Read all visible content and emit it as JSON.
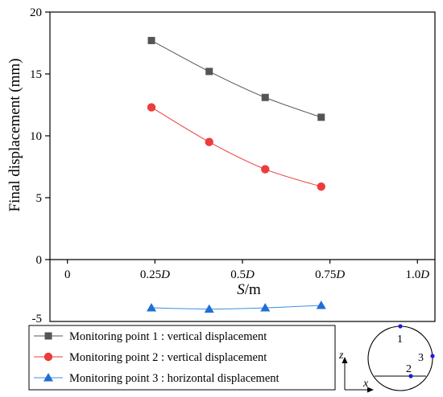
{
  "chart_data": {
    "type": "line",
    "xlabel": "S/m",
    "xlabel_parts": [
      "S",
      "/m"
    ],
    "ylabel": "Final displacement (mm)",
    "xlim": [
      -0.05,
      1.05
    ],
    "ylim": [
      -5,
      20
    ],
    "x_ticks": [
      {
        "value": 0,
        "label": "0",
        "num": "0",
        "sym": ""
      },
      {
        "value": 0.25,
        "label": "0.25D",
        "num": "0.25",
        "sym": "D"
      },
      {
        "value": 0.5,
        "label": "0.5D",
        "num": "0.5",
        "sym": "D"
      },
      {
        "value": 0.75,
        "label": "0.75D",
        "num": "0.75",
        "sym": "D"
      },
      {
        "value": 1.0,
        "label": "1.0D",
        "num": "1.0",
        "sym": "D"
      }
    ],
    "y_ticks": [
      0,
      5,
      10,
      15,
      20
    ],
    "y_tick_labels": [
      "0",
      "5",
      "10",
      "15",
      "20"
    ],
    "y_axis_lower_label": "-5",
    "grid": false,
    "legend_position": "bottom-left",
    "series": [
      {
        "name": "Monitoring point 1 : vertical displacement",
        "marker": "square",
        "color": "#555555",
        "line_color": "#555555",
        "x": [
          0.24,
          0.405,
          0.565,
          0.725
        ],
        "y": [
          17.7,
          15.2,
          13.1,
          11.5
        ]
      },
      {
        "name": "Monitoring point 2 : vertical displacement",
        "marker": "circle",
        "color": "#ee3b3b",
        "line_color": "#ee3b3b",
        "x": [
          0.24,
          0.405,
          0.565,
          0.725
        ],
        "y": [
          12.3,
          9.5,
          7.3,
          5.9
        ]
      },
      {
        "name": "Monitoring point 3 : horizontal displacement",
        "marker": "triangle",
        "color": "#1f6fd6",
        "line_color": "#3b8fe0",
        "x": [
          0.24,
          0.405,
          0.565,
          0.725
        ],
        "y": [
          -3.9,
          -4.0,
          -3.9,
          -3.7
        ]
      }
    ]
  },
  "inset": {
    "point_labels": [
      "1",
      "2",
      "3"
    ],
    "axis_z": "z",
    "axis_x": "x",
    "point_color": "#1a1adc"
  }
}
